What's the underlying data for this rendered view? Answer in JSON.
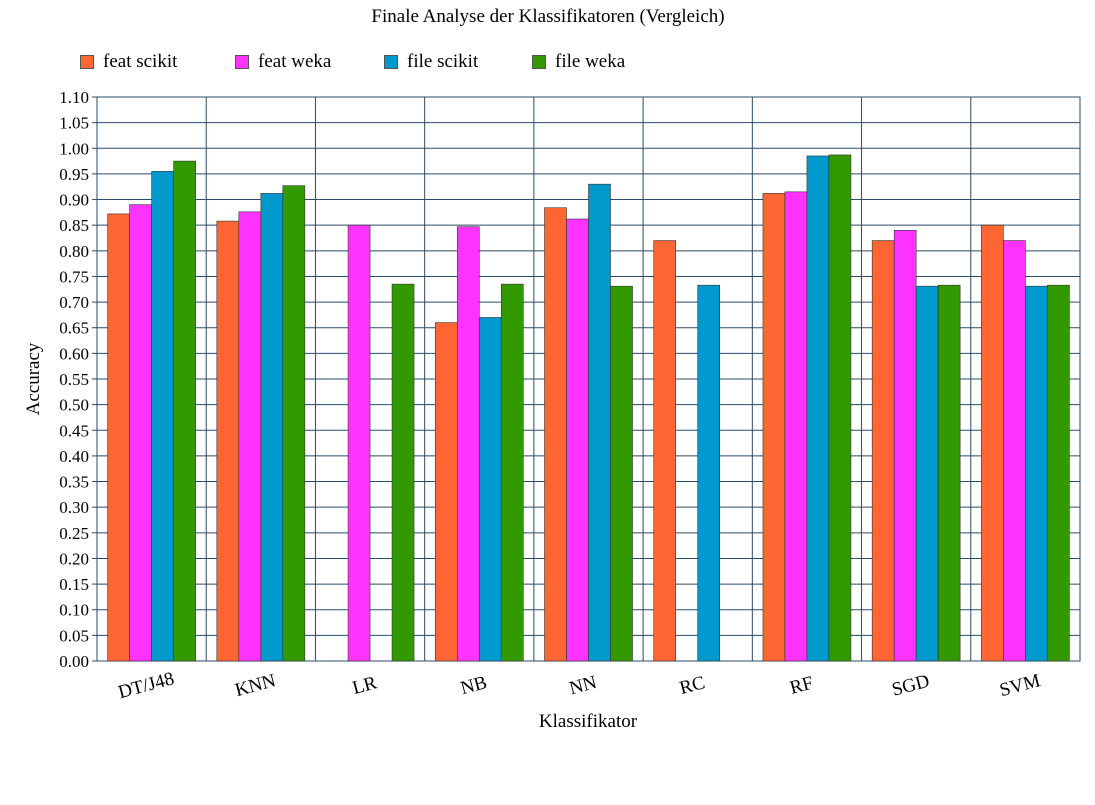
{
  "chart_data": {
    "type": "bar",
    "title": "Finale Analyse der Klassifikatoren (Vergleich)",
    "xlabel": "Klassifikator",
    "ylabel": "Accuracy",
    "ylim": [
      0,
      1.1
    ],
    "ytick_step": 0.05,
    "grid": true,
    "legend_position": "top-left",
    "categories": [
      "DT/J48",
      "KNN",
      "LR",
      "NB",
      "NN",
      "RC",
      "RF",
      "SGD",
      "SVM"
    ],
    "series": [
      {
        "name": "feat scikit",
        "color": "#ff6633",
        "values": [
          0.872,
          0.858,
          null,
          0.66,
          0.884,
          0.82,
          0.912,
          0.82,
          0.85
        ]
      },
      {
        "name": "feat weka",
        "color": "#ff33ff",
        "values": [
          0.89,
          0.876,
          0.85,
          0.847,
          0.862,
          null,
          0.915,
          0.84,
          0.82
        ]
      },
      {
        "name": "file scikit",
        "color": "#0099cc",
        "values": [
          0.955,
          0.912,
          null,
          0.67,
          0.93,
          0.733,
          0.985,
          0.731,
          0.731
        ]
      },
      {
        "name": "file weka",
        "color": "#339900",
        "values": [
          0.975,
          0.927,
          0.735,
          0.735,
          0.731,
          null,
          0.987,
          0.733,
          0.733
        ]
      }
    ]
  }
}
